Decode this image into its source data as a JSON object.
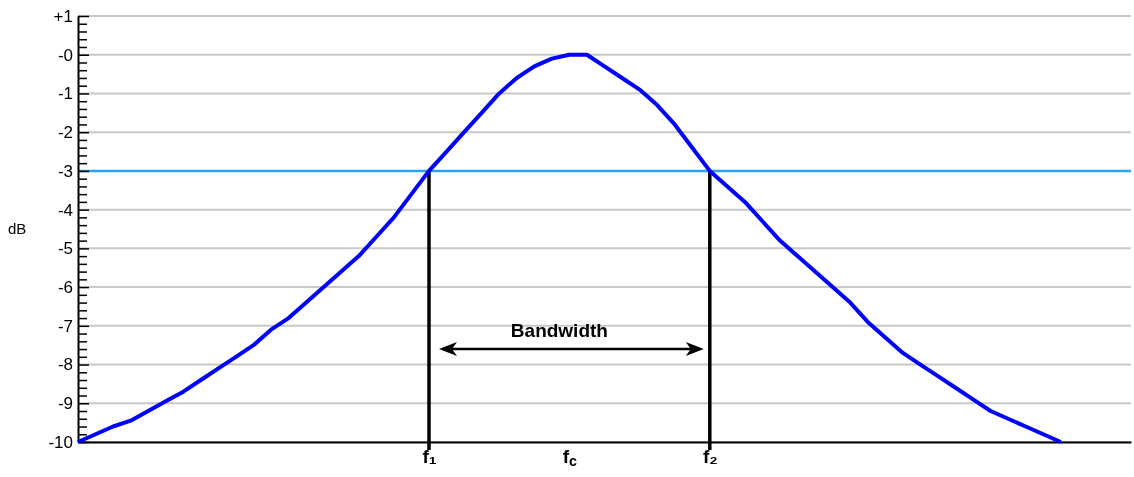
{
  "chart_data": {
    "type": "line",
    "ylabel": "dB",
    "ylim": [
      -10,
      1
    ],
    "categories": [
      null,
      null,
      null,
      null,
      null,
      null,
      null,
      null,
      null,
      null,
      null,
      null,
      null,
      null,
      null,
      null,
      null,
      null,
      null,
      null,
      "f₁",
      null,
      null,
      null,
      null,
      null,
      null,
      null,
      "f$_{c}$",
      null,
      null,
      null,
      null,
      null,
      null,
      null,
      "f₂",
      null,
      null,
      null,
      null,
      null,
      null,
      null,
      null,
      null,
      null,
      null,
      null,
      null,
      null,
      null,
      null,
      null,
      null,
      null,
      null,
      null,
      null,
      null,
      null
    ],
    "yticks": [
      {
        "value": 1,
        "label": "+1"
      },
      {
        "value": 0.8,
        "label": null
      },
      {
        "value": 0.6,
        "label": null
      },
      {
        "value": 0.4,
        "label": null
      },
      {
        "value": 0.2,
        "label": null
      },
      {
        "value": 0,
        "label": "-0"
      },
      {
        "value": -0.2,
        "label": null
      },
      {
        "value": -0.4,
        "label": null
      },
      {
        "value": -0.6,
        "label": null
      },
      {
        "value": -0.8,
        "label": null
      },
      -1,
      {
        "value": -1.2,
        "label": null
      },
      {
        "value": -1.4,
        "label": null
      },
      {
        "value": -1.6,
        "label": null
      },
      {
        "value": -1.8,
        "label": null
      },
      -2,
      {
        "value": -2.2,
        "label": null
      },
      {
        "value": -2.4,
        "label": null
      },
      {
        "value": -2.6,
        "label": null
      },
      {
        "value": -2.8,
        "label": null
      },
      -3,
      {
        "value": -3.2,
        "label": null
      },
      {
        "value": -3.4,
        "label": null
      },
      {
        "value": -3.6,
        "label": null
      },
      {
        "value": -3.8,
        "label": null
      },
      -4,
      {
        "value": -4.2,
        "label": null
      },
      {
        "value": -4.4,
        "label": null
      },
      {
        "value": -4.6,
        "label": null
      },
      {
        "value": -4.8,
        "label": null
      },
      -5,
      {
        "value": -5.2,
        "label": null
      },
      {
        "value": -5.4,
        "label": null
      },
      {
        "value": -5.6,
        "label": null
      },
      {
        "value": -5.8,
        "label": null
      },
      -6,
      {
        "value": -6.2,
        "label": null
      },
      {
        "value": -6.4,
        "label": null
      },
      {
        "value": -6.6,
        "label": null
      },
      {
        "value": -6.8,
        "label": null
      },
      -7,
      {
        "value": -7.2,
        "label": null
      },
      {
        "value": -7.4,
        "label": null
      },
      {
        "value": -7.6,
        "label": null
      },
      {
        "value": -7.8,
        "label": null
      },
      -8,
      {
        "value": -8.2,
        "label": null
      },
      {
        "value": -8.4,
        "label": null
      },
      {
        "value": -8.6,
        "label": null
      },
      {
        "value": -8.8,
        "label": null
      },
      -9,
      {
        "value": -9.2,
        "label": null
      },
      {
        "value": -9.4,
        "label": null
      },
      {
        "value": -9.6,
        "label": null
      },
      {
        "value": -9.8,
        "label": null
      },
      -10
    ],
    "grid": "y",
    "series": [
      {
        "color": "#0000ff",
        "values": [
          -10,
          -9.8,
          -9.6,
          -9.45,
          -9.2,
          -8.95,
          -8.7,
          -8.4,
          -8.1,
          -7.8,
          -7.5,
          -7.1,
          -6.8,
          -6.4,
          -6.0,
          -5.6,
          -5.2,
          -4.7,
          -4.2,
          -3.6,
          -3.0,
          -2.5,
          -2.0,
          -1.5,
          -1.0,
          -0.6,
          -0.3,
          -0.1,
          0,
          0,
          -0.3,
          -0.6,
          -0.9,
          -1.3,
          -1.8,
          -2.4,
          -3.0,
          -3.4,
          -3.8,
          -4.3,
          -4.8,
          -5.2,
          -5.6,
          -6.0,
          -6.4,
          -6.9,
          -7.3,
          -7.7,
          -8.0,
          -8.3,
          -8.6,
          -8.9,
          -9.2,
          -9.4,
          -9.6,
          -9.8,
          -10,
          null,
          null,
          null,
          null
        ]
      }
    ],
    "ref_lines": [
      {
        "axis": "y",
        "value": -3,
        "color": "#29a3f0"
      },
      {
        "axis": "x",
        "value": "f₁",
        "color": "#000000"
      },
      {
        "axis": "x",
        "value": "f₂",
        "color": "#000000"
      }
    ],
    "annotations": [
      "Bandwidth"
    ]
  }
}
